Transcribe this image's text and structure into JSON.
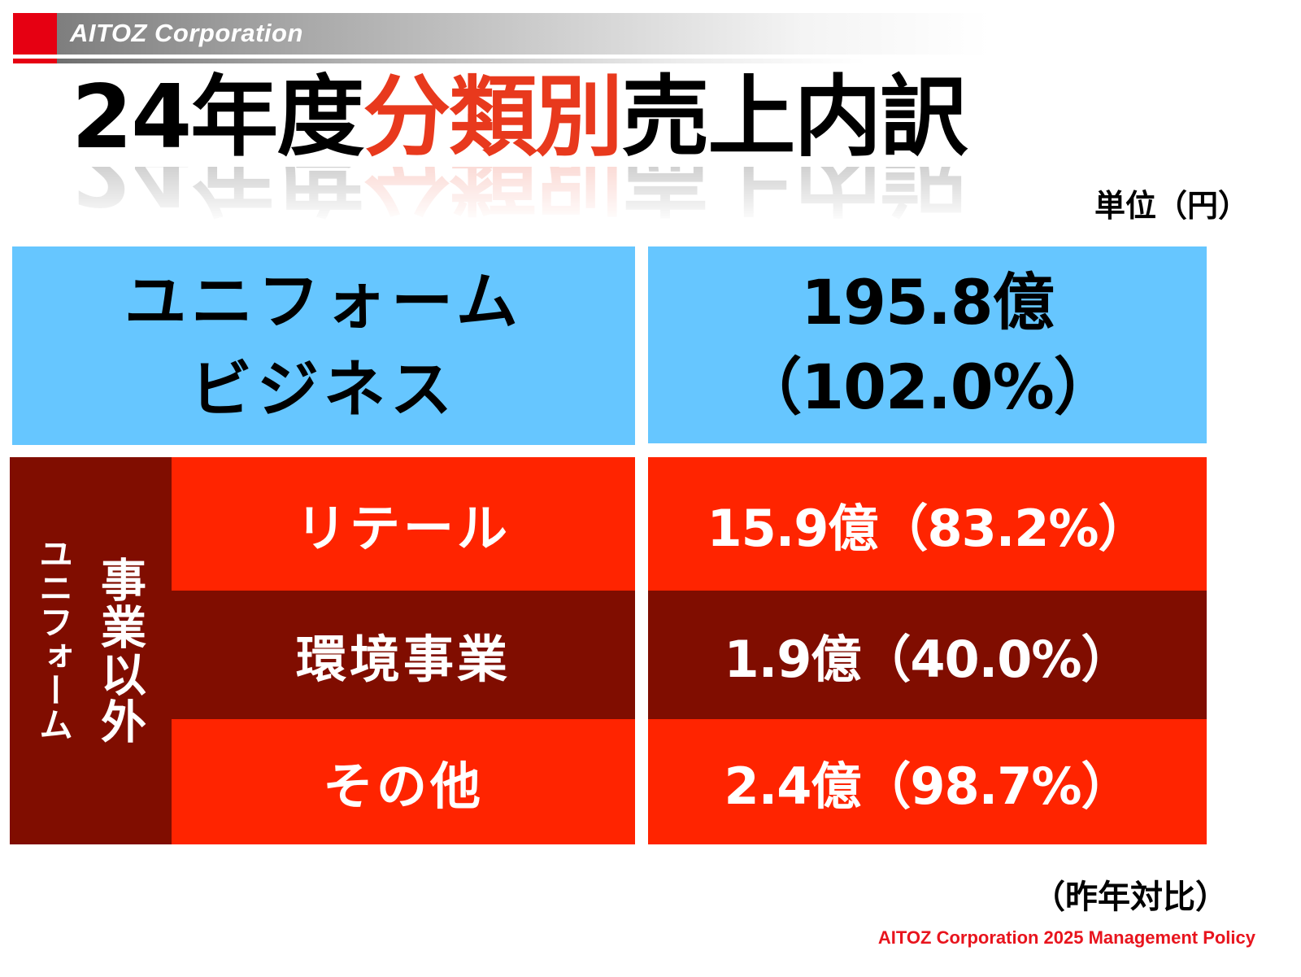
{
  "header": {
    "logo_text": "AITOZ Corporation",
    "colors": {
      "accent_red": "#e60012",
      "bar_gray_start": "#7e7e7e",
      "bar_gray_end": "#ffffff"
    }
  },
  "title": {
    "part1": "24年度",
    "part2_accent": "分類別",
    "part3": "売上内訳",
    "accent_color": "#e8391d"
  },
  "unit_label": "単位（円）",
  "table": {
    "uniform": {
      "label_line1": "ユニフォーム",
      "label_line2": "ビジネス",
      "value": "195.8億",
      "ratio": "（102.0%）",
      "bg_color": "#66c6ff"
    },
    "non_uniform": {
      "group_label_main": "事業以外",
      "group_label_sub": "ユニフォーム",
      "group_bg_color": "#800d00",
      "rows": [
        {
          "label": "リテール",
          "value": "15.9億",
          "ratio": "（83.2%）",
          "bg_color": "#ff2400"
        },
        {
          "label": "環境事業",
          "value": "1.9億",
          "ratio": "（40.0%）",
          "bg_color": "#800d00"
        },
        {
          "label": "その他",
          "value": "2.4億",
          "ratio": "（98.7%）",
          "bg_color": "#ff2400"
        }
      ]
    }
  },
  "note": "（昨年対比）",
  "footer": "AITOZ Corporation 2025 Management Policy",
  "footer_color": "#e8141d"
}
